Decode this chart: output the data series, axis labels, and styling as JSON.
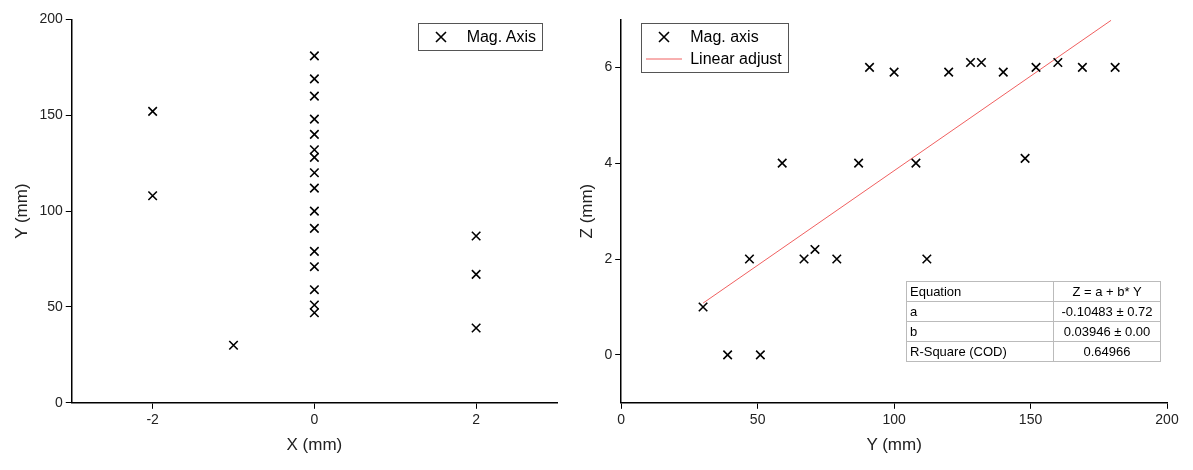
{
  "chart_data": [
    {
      "type": "scatter",
      "xlabel": "X (mm)",
      "ylabel": "Y (mm)",
      "xlim": [
        -3,
        3
      ],
      "xticks": [
        -2,
        0,
        2
      ],
      "ylim": [
        0,
        200
      ],
      "yticks": [
        0,
        50,
        100,
        150,
        200
      ],
      "grid": false,
      "legend": "top right",
      "marker": "cross",
      "series": [
        {
          "name": "Mag. Axis",
          "color": "#000000",
          "x": [
            -2,
            -2,
            -1,
            0,
            0,
            0,
            0,
            0,
            0,
            0,
            0,
            0,
            0,
            0,
            0,
            0,
            0,
            0,
            0,
            2,
            2,
            2
          ],
          "values": [
            152,
            108,
            30,
            181,
            169,
            160,
            148,
            140,
            132,
            128,
            120,
            112,
            100,
            91,
            79,
            71,
            59,
            51,
            47,
            87,
            67,
            39
          ]
        }
      ]
    },
    {
      "type": "scatter",
      "xlabel": "Y (mm)",
      "ylabel": "Z (mm)",
      "xlim": [
        0,
        200
      ],
      "xticks": [
        0,
        50,
        100,
        150,
        200
      ],
      "ylim": [
        -1,
        7
      ],
      "yticks": [
        0,
        2,
        4,
        6
      ],
      "grid": false,
      "legend": "top left",
      "marker": "cross",
      "annotations": [
        "Equation",
        "Z = a + b* Y",
        "a",
        "-0.10483 ± 0.72",
        "b",
        "0.03946 ± 0.00",
        "R-Square (COD)",
        "0.64966"
      ],
      "series": [
        {
          "name": "Mag. axis",
          "color": "#000000",
          "x": [
            30,
            39,
            47,
            51,
            59,
            67,
            71,
            79,
            87,
            91,
            100,
            108,
            112,
            120,
            128,
            132,
            140,
            148,
            152,
            160,
            169,
            181
          ],
          "values": [
            1,
            0,
            2,
            0,
            4,
            2,
            2.2,
            2,
            4,
            6,
            5.9,
            4,
            2,
            5.9,
            6.1,
            6.1,
            5.9,
            4.1,
            6,
            6.1,
            6,
            6
          ]
        },
        {
          "type": "line",
          "marker": "none",
          "name": "Linear adjust",
          "color": "#f06060",
          "x": [
            30,
            179.5
          ],
          "values": [
            1.08,
            6.98
          ]
        }
      ]
    }
  ]
}
